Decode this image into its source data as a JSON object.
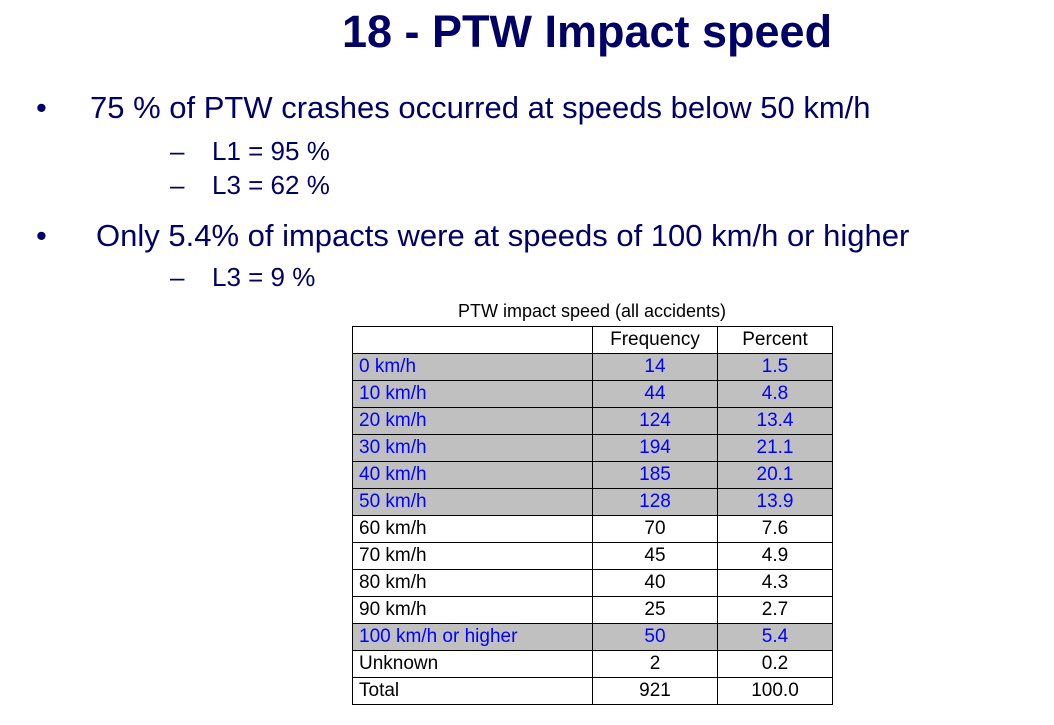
{
  "slide": {
    "title": "18 - PTW Impact speed"
  },
  "bullets": [
    {
      "symbol": "•",
      "text": "75 % of PTW crashes occurred at speeds below 50 km/h",
      "subs": [
        {
          "symbol": "–",
          "text": "L1 = 95 %"
        },
        {
          "symbol": "–",
          "text": "L3 = 62 %"
        }
      ]
    },
    {
      "symbol": "•",
      "text": "Only 5.4% of impacts were at speeds of 100 km/h or higher",
      "subs": [
        {
          "symbol": "–",
          "text": "L3 = 9 %"
        }
      ]
    }
  ],
  "table": {
    "caption": "PTW impact speed (all accidents)",
    "columns": [
      "",
      "Frequency",
      "Percent"
    ],
    "rows": [
      {
        "label": "0 km/h",
        "frequency": "14",
        "percent": "1.5",
        "highlight": true
      },
      {
        "label": "10 km/h",
        "frequency": "44",
        "percent": "4.8",
        "highlight": true
      },
      {
        "label": "20 km/h",
        "frequency": "124",
        "percent": "13.4",
        "highlight": true
      },
      {
        "label": "30 km/h",
        "frequency": "194",
        "percent": "21.1",
        "highlight": true
      },
      {
        "label": "40 km/h",
        "frequency": "185",
        "percent": "20.1",
        "highlight": true
      },
      {
        "label": "50 km/h",
        "frequency": "128",
        "percent": "13.9",
        "highlight": true
      },
      {
        "label": "60 km/h",
        "frequency": "70",
        "percent": "7.6",
        "highlight": false
      },
      {
        "label": "70 km/h",
        "frequency": "45",
        "percent": "4.9",
        "highlight": false
      },
      {
        "label": "80 km/h",
        "frequency": "40",
        "percent": "4.3",
        "highlight": false
      },
      {
        "label": "90 km/h",
        "frequency": "25",
        "percent": "2.7",
        "highlight": false
      },
      {
        "label": "100 km/h or higher",
        "frequency": "50",
        "percent": "5.4",
        "highlight": true
      },
      {
        "label": "Unknown",
        "frequency": "2",
        "percent": "0.2",
        "highlight": false
      },
      {
        "label": "Total",
        "frequency": "921",
        "percent": "100.0",
        "highlight": false
      }
    ]
  },
  "colors": {
    "text": "#000066",
    "highlight_bg": "#c0c0c0",
    "highlight_text": "#0000ff"
  }
}
